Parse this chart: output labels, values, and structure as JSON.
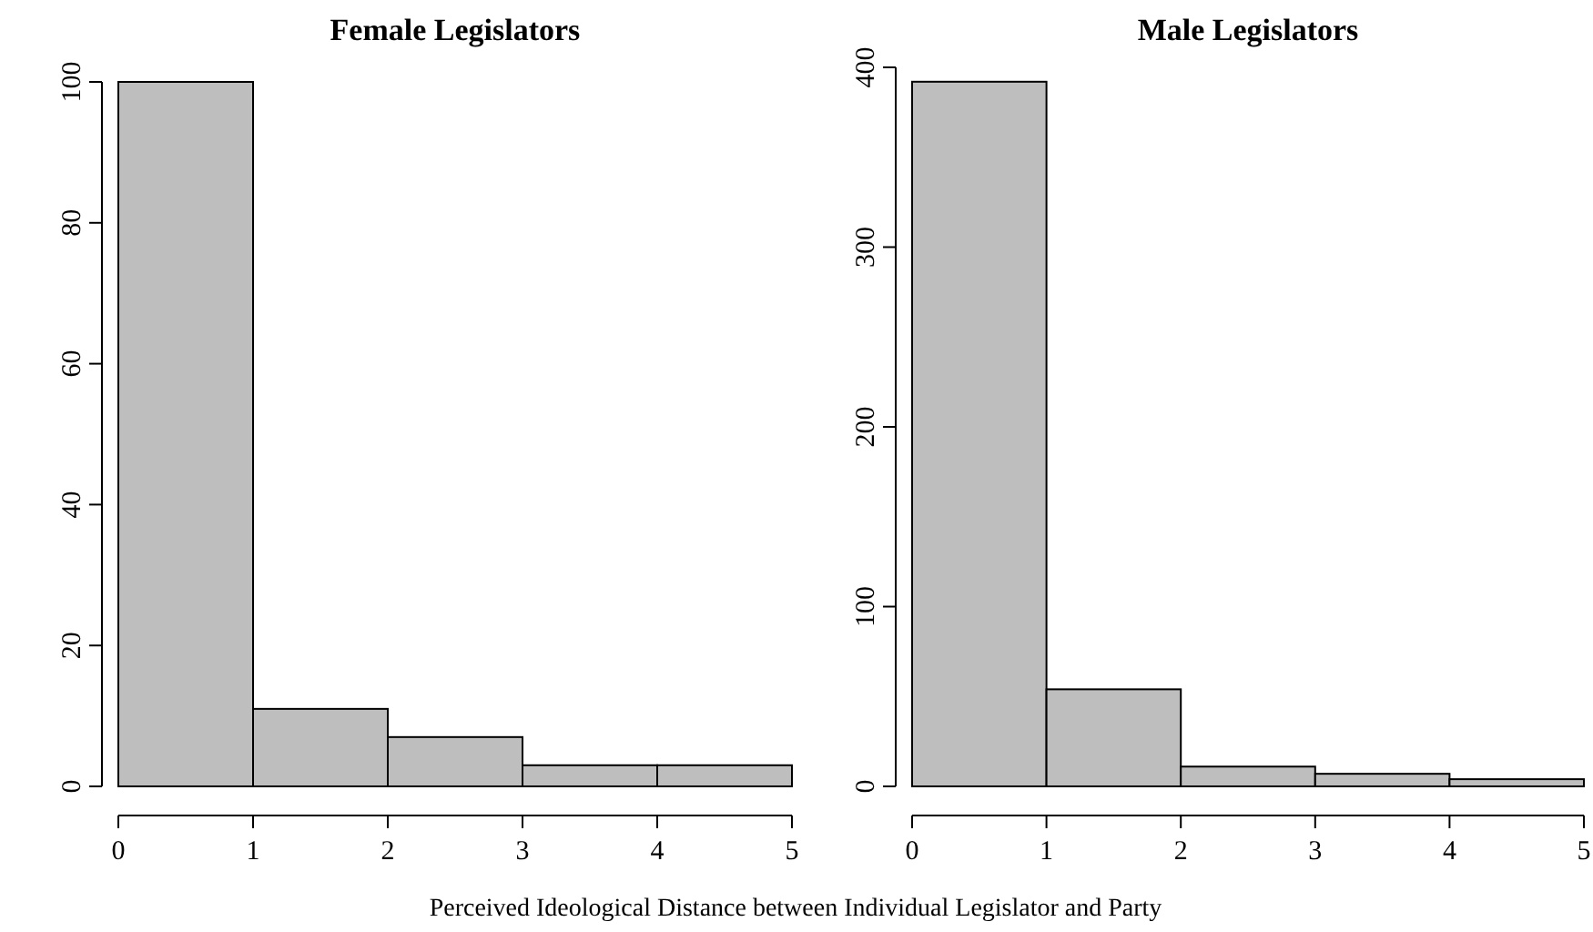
{
  "chart_data": [
    {
      "type": "histogram",
      "title": "Female Legislators",
      "xlabel": "Perceived Ideological Distance between Individual Legislator and Party",
      "bins": [
        0,
        1,
        2,
        3,
        4,
        5
      ],
      "values": [
        100,
        11,
        7,
        3,
        3
      ],
      "color": "#bebebe",
      "xlim": [
        0,
        5
      ],
      "xticks": [
        0,
        1,
        2,
        3,
        4,
        5
      ],
      "ylim": [
        0,
        100
      ],
      "yticks": [
        0,
        20,
        40,
        60,
        80,
        100
      ],
      "grid": false
    },
    {
      "type": "histogram",
      "title": "Male Legislators",
      "bins": [
        0,
        1,
        2,
        3,
        4,
        5
      ],
      "values": [
        392,
        54,
        11,
        7,
        4
      ],
      "color": "#bebebe",
      "xlim": [
        0,
        5
      ],
      "xticks": [
        0,
        1,
        2,
        3,
        4,
        5
      ],
      "ylim": [
        0,
        400
      ],
      "yticks": [
        0,
        100,
        200,
        300,
        400
      ],
      "grid": false
    }
  ]
}
